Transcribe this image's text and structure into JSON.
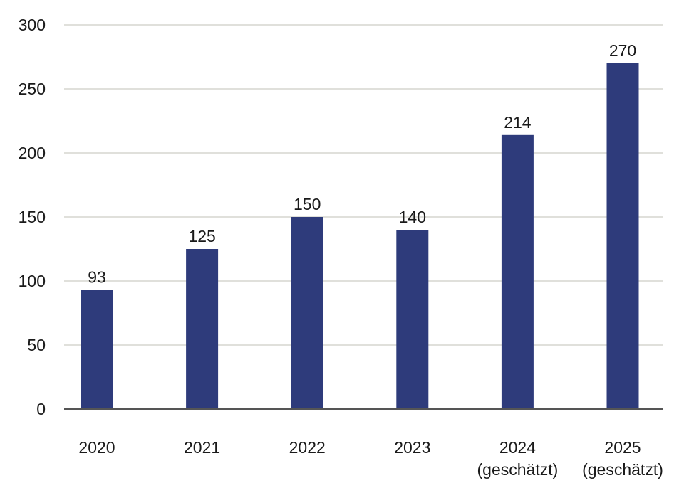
{
  "chart_data": {
    "type": "bar",
    "title": "",
    "xlabel": "",
    "ylabel": "",
    "ylim": [
      0,
      300
    ],
    "y_ticks": [
      0,
      50,
      100,
      150,
      200,
      250,
      300
    ],
    "y_tick_labels": [
      "0",
      "50",
      "100",
      "150",
      "200",
      "250",
      "300"
    ],
    "grid": true,
    "legend": "none",
    "categories": [
      [
        "2020"
      ],
      [
        "2021"
      ],
      [
        "2022"
      ],
      [
        "2023"
      ],
      [
        "2024",
        "(geschätzt)"
      ],
      [
        "2025",
        "(geschätzt)"
      ]
    ],
    "values": [
      93,
      125,
      150,
      140,
      214,
      270
    ],
    "data_labels": [
      "93",
      "125",
      "150",
      "140",
      "214",
      "270"
    ],
    "colors": {
      "bar": "#2e3b7b",
      "grid": "#d6d6cf",
      "axis": "#555555"
    }
  }
}
